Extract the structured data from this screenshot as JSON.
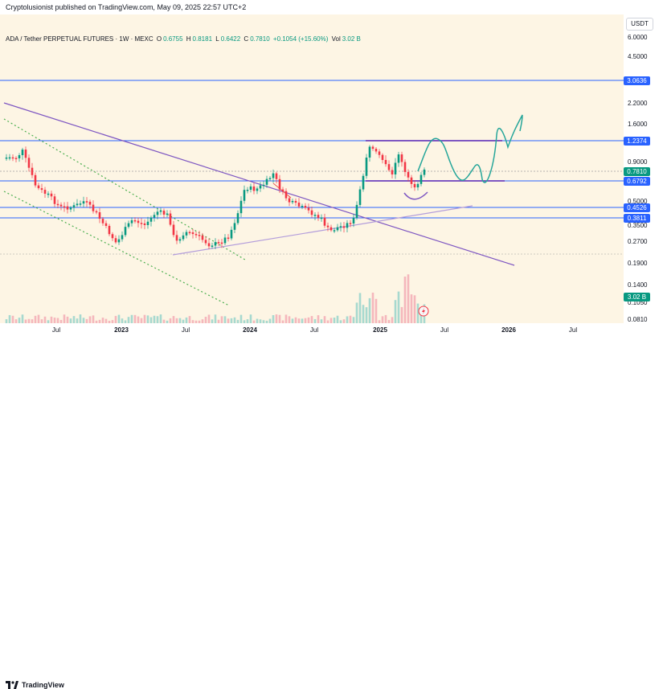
{
  "header": {
    "publisher_line": "Cryptolusionist published on TradingView.com, May 09, 2025 22:57 UTC+2"
  },
  "symbol": {
    "name": "ADA / Tether PERPETUAL FUTURES · 1W · MEXC",
    "o_label": "O",
    "o": "0.6755",
    "h_label": "H",
    "h": "0.8181",
    "l_label": "L",
    "l": "0.6422",
    "c_label": "C",
    "c": "0.7810",
    "change": "+0.1054 (+15.60%)",
    "vol_label": "Vol",
    "vol": "3.02 B"
  },
  "axis": {
    "currency": "USDT",
    "ticks": [
      "6.0000",
      "4.5000",
      "2.2000",
      "1.6000",
      "0.9000",
      "0.5000",
      "0.3500",
      "0.2700",
      "0.1900",
      "0.1400",
      "0.1050",
      "0.0810"
    ],
    "badges": [
      {
        "text": "3.0636",
        "color": "#2962ff"
      },
      {
        "text": "1.2374",
        "color": "#2962ff"
      },
      {
        "text": "0.7810",
        "color": "#089981"
      },
      {
        "text": "0.6792",
        "color": "#2962ff"
      },
      {
        "text": "0.4526",
        "color": "#2962ff"
      },
      {
        "text": "0.3811",
        "color": "#2962ff"
      },
      {
        "text": "3.02 B",
        "color": "#089981"
      }
    ]
  },
  "xaxis": {
    "labels": [
      "Jul",
      "2023",
      "Jul",
      "2024",
      "Jul",
      "2025",
      "Jul",
      "2026",
      "Jul"
    ]
  },
  "footer": {
    "brand": "TradingView"
  },
  "colors": {
    "up": "#089981",
    "down": "#f23645",
    "level_line": "#2962ff",
    "trend_line": "#7e57c2",
    "projection": "#26a69a",
    "support_dotted": "#4caf50"
  },
  "icons": {
    "logo": "tradingview-logo-icon",
    "flash": "lightning-icon"
  }
}
